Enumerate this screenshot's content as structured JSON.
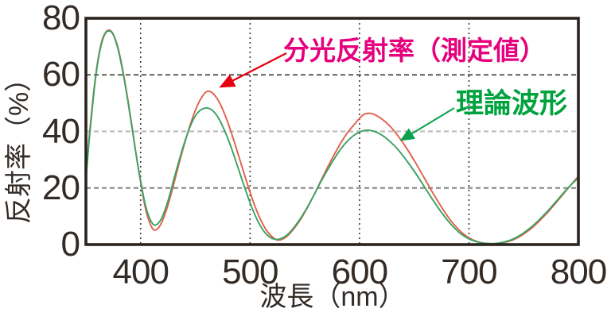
{
  "figure": {
    "background": "#ffffff",
    "frame_color": "#2b231e",
    "tick_color": "#332b26"
  },
  "chart_data": {
    "type": "line",
    "title": "",
    "xlabel": "波長（nm）",
    "ylabel": "反射率（%）",
    "xlim": [
      350,
      800
    ],
    "ylim": [
      0,
      80
    ],
    "x_ticks": [
      400,
      500,
      600,
      700,
      800
    ],
    "y_ticks": [
      0,
      20,
      40,
      60,
      80
    ],
    "grid": {
      "vertical": {
        "values": [
          400,
          500,
          600,
          700
        ],
        "color": "#3c3632",
        "dash": "2 4",
        "width": 1.6
      },
      "horizontal": [
        {
          "value": 60,
          "color": "#4a433d",
          "dash": "6 4",
          "width": 1.8
        },
        {
          "value": 40,
          "color": "#bdbdbd",
          "dash": "6 4",
          "width": 2.2
        },
        {
          "value": 20,
          "color": "#8f8f8f",
          "dash": "6 4",
          "width": 2.2
        }
      ]
    },
    "legend_position": "annotations-inside",
    "x": [
      350,
      353,
      356,
      359,
      362,
      365,
      368,
      371,
      374,
      377,
      380,
      384,
      388,
      392,
      396,
      400,
      404,
      408,
      412,
      416,
      420,
      425,
      430,
      435,
      440,
      445,
      450,
      455,
      460,
      465,
      470,
      475,
      480,
      485,
      490,
      495,
      500,
      505,
      510,
      515,
      520,
      525,
      530,
      535,
      540,
      546,
      552,
      558,
      565,
      572,
      580,
      588,
      596,
      604,
      612,
      620,
      628,
      636,
      644,
      652,
      660,
      668,
      676,
      684,
      692,
      700,
      708,
      716,
      724,
      732,
      740,
      748,
      756,
      764,
      772,
      780,
      790,
      800
    ],
    "series": [
      {
        "name": "分光反射率（測定値）",
        "color": "#e0604a",
        "values": [
          24,
          38,
          50,
          60,
          67.5,
          72.5,
          75,
          75.8,
          75,
          72.5,
          68.5,
          61,
          52,
          42,
          31.5,
          22,
          13.5,
          8,
          5.2,
          5.8,
          8.5,
          14,
          21,
          28.5,
          35.5,
          42,
          47.5,
          51.5,
          54,
          53.8,
          51.5,
          47.8,
          42.8,
          37,
          30.8,
          24.5,
          18.5,
          13,
          8.5,
          5,
          2.8,
          1.6,
          2,
          3.4,
          5.6,
          8.8,
          12.8,
          17.2,
          22.8,
          28.2,
          34,
          39,
          42.8,
          46,
          46.2,
          44.5,
          41.8,
          38,
          33.5,
          28.4,
          23,
          17.6,
          12.6,
          8.2,
          4.8,
          2.4,
          1,
          0.4,
          0.3,
          0.7,
          1.6,
          3.2,
          5.4,
          8.2,
          11.4,
          15,
          19.6,
          24.2
        ]
      },
      {
        "name": "理論波形",
        "color": "#3ba263",
        "values": [
          23,
          37,
          49,
          59.5,
          67,
          72,
          74.8,
          75.5,
          74.8,
          72.2,
          68,
          60.5,
          51.5,
          41.5,
          31.5,
          22.5,
          14.5,
          9.5,
          7,
          7.5,
          10,
          15.5,
          22.5,
          29.5,
          36,
          41.5,
          45.5,
          47.6,
          48.3,
          47.6,
          45.4,
          41.8,
          37.2,
          31.8,
          26,
          20.2,
          14.8,
          10,
          6.2,
          3.6,
          2.2,
          1.8,
          2.4,
          3.8,
          6,
          9.2,
          13,
          17.2,
          22.4,
          27.2,
          32.2,
          36.2,
          38.9,
          40.3,
          40.2,
          38.8,
          36.4,
          33.2,
          29.2,
          24.8,
          20,
          15.2,
          10.8,
          7,
          4,
          2,
          0.9,
          0.4,
          0.4,
          0.9,
          1.9,
          3.6,
          5.9,
          8.7,
          11.9,
          15.4,
          19.8,
          23.6
        ]
      }
    ]
  },
  "annotations": {
    "measured": {
      "label": "分光反射率（測定値）",
      "text_color": "#e6007d",
      "arrow_color": "#e60012"
    },
    "theoretical": {
      "label": "理論波形",
      "text_color": "#00a23e",
      "arrow_color": "#0ba14c"
    }
  }
}
